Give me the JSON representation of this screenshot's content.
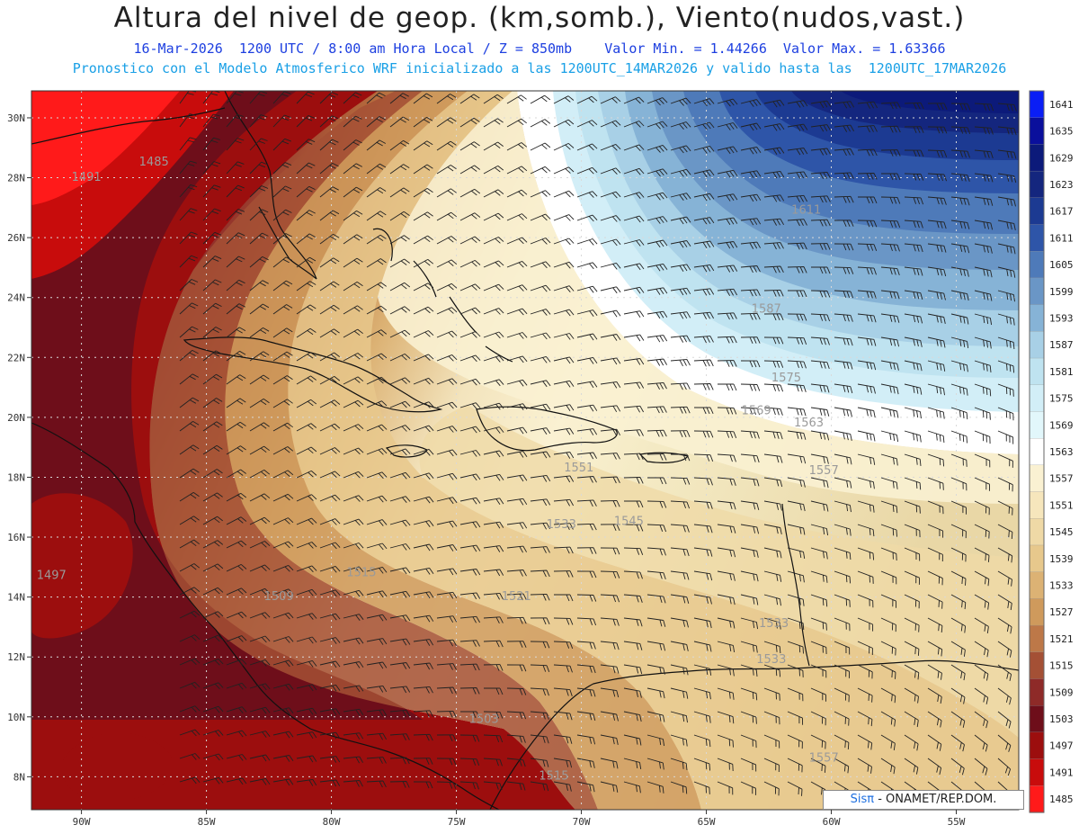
{
  "title": "Altura del nivel de geop. (km,somb.), Viento(nudos,vast.)",
  "subtitle1": "16-Mar-2026  1200 UTC / 8:00 am Hora Local / Z = 850mb    Valor Min. = 1.44266  Valor Max. = 1.63366",
  "subtitle2": "Pronostico con el Modelo Atmosferico WRF inicializado a las 1200UTC_14MAR2026 y valido hasta las  1200UTC_17MAR2026",
  "credit": {
    "brand": "Sisπ",
    "rest": " - ONAMET/REP.DOM."
  },
  "axes": {
    "lon_labels": [
      "90W",
      "85W",
      "80W",
      "75W",
      "70W",
      "65W",
      "60W",
      "55W"
    ],
    "lat_labels": [
      "30N",
      "28N",
      "26N",
      "24N",
      "22N",
      "20N",
      "18N",
      "16N",
      "14N",
      "12N",
      "10N",
      "8N"
    ]
  },
  "colorbar": {
    "levels": [
      "1641",
      "1635",
      "1629",
      "1623",
      "1617",
      "1611",
      "1605",
      "1599",
      "1593",
      "1587",
      "1581",
      "1575",
      "1569",
      "1563",
      "1557",
      "1551",
      "1545",
      "1539",
      "1533",
      "1527",
      "1521",
      "1515",
      "1509",
      "1503",
      "1497",
      "1491",
      "1485"
    ],
    "colors": [
      "#0a1ef5",
      "#0a0f9c",
      "#0c1a7a",
      "#14267e",
      "#1c3a92",
      "#2e55a8",
      "#4e7ab9",
      "#6a96c6",
      "#86b3d6",
      "#a8d0e6",
      "#bfe3f0",
      "#d2eef7",
      "#e2f7fb",
      "#ffffff",
      "#faf1d2",
      "#f6e6bc",
      "#efd9a6",
      "#e7c88c",
      "#dcb274",
      "#cf9a5c",
      "#bd7848",
      "#a45035",
      "#8e2a28",
      "#6e0e1a",
      "#9c0e0e",
      "#c80c0c",
      "#ff1a1a"
    ]
  },
  "contour_labels": [
    {
      "text": "1485",
      "lon": -87.1,
      "lat": 28.4
    },
    {
      "text": "1491",
      "lon": -89.8,
      "lat": 27.9
    },
    {
      "text": "1497",
      "lon": -91.2,
      "lat": 14.6
    },
    {
      "text": "1503",
      "lon": -73.9,
      "lat": 9.8
    },
    {
      "text": "1509",
      "lon": -82.1,
      "lat": 13.9
    },
    {
      "text": "1515",
      "lon": -78.8,
      "lat": 14.7
    },
    {
      "text": "1515",
      "lon": -71.1,
      "lat": 7.9
    },
    {
      "text": "1521",
      "lon": -72.6,
      "lat": 13.9
    },
    {
      "text": "1533",
      "lon": -70.8,
      "lat": 16.3
    },
    {
      "text": "1545",
      "lon": -68.1,
      "lat": 16.4
    },
    {
      "text": "1551",
      "lon": -70.1,
      "lat": 18.2
    },
    {
      "text": "1557",
      "lon": -60.3,
      "lat": 18.1
    },
    {
      "text": "1563",
      "lon": -60.9,
      "lat": 19.7
    },
    {
      "text": "1569",
      "lon": -63.0,
      "lat": 20.1
    },
    {
      "text": "1575",
      "lon": -61.8,
      "lat": 21.2
    },
    {
      "text": "1587",
      "lon": -62.6,
      "lat": 23.5
    },
    {
      "text": "1611",
      "lon": -61.0,
      "lat": 26.8
    },
    {
      "text": "1557",
      "lon": -60.3,
      "lat": 8.5
    },
    {
      "text": "1533",
      "lon": -62.3,
      "lat": 13.0
    },
    {
      "text": "1533",
      "lon": -62.4,
      "lat": 11.8
    }
  ]
}
